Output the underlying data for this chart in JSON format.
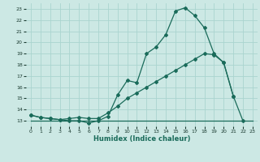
{
  "title": "",
  "xlabel": "Humidex (Indice chaleur)",
  "ylabel": "",
  "bg_color": "#cce8e4",
  "grid_color": "#aad4cf",
  "line_color": "#1a6b5a",
  "xlim": [
    -0.5,
    23.5
  ],
  "ylim": [
    12.5,
    23.5
  ],
  "xticks": [
    0,
    1,
    2,
    3,
    4,
    5,
    6,
    7,
    8,
    9,
    10,
    11,
    12,
    13,
    14,
    15,
    16,
    17,
    18,
    19,
    20,
    21,
    22,
    23
  ],
  "yticks": [
    13,
    14,
    15,
    16,
    17,
    18,
    19,
    20,
    21,
    22,
    23
  ],
  "line1_x": [
    0,
    1,
    2,
    3,
    4,
    5,
    6,
    7,
    8,
    9,
    10,
    11,
    12,
    13,
    14,
    15,
    16,
    17,
    18,
    19,
    20,
    21,
    22,
    23
  ],
  "line1_y": [
    13.5,
    13.3,
    13.2,
    13.1,
    13.0,
    13.0,
    12.8,
    13.0,
    13.4,
    15.3,
    16.6,
    16.4,
    19.0,
    19.6,
    20.7,
    22.8,
    23.1,
    22.4,
    21.3,
    19.0,
    18.2,
    15.2,
    null,
    null
  ],
  "line2_x": [
    0,
    1,
    2,
    3,
    4,
    5,
    6,
    7,
    8,
    9,
    10,
    11,
    12,
    13,
    14,
    15,
    16,
    17,
    18,
    19,
    20,
    21,
    22,
    23
  ],
  "line2_y": [
    13.5,
    13.3,
    13.2,
    13.1,
    13.2,
    13.3,
    13.2,
    13.2,
    13.7,
    14.3,
    15.0,
    15.5,
    16.0,
    16.5,
    17.0,
    17.5,
    18.0,
    18.5,
    19.0,
    18.9,
    18.2,
    15.2,
    13.0,
    null
  ],
  "line3_x": [
    0,
    23
  ],
  "line3_y": [
    13.0,
    13.0
  ],
  "markers1_x": [
    0,
    1,
    2,
    3,
    4,
    5,
    6,
    7,
    8,
    9,
    10,
    11,
    12,
    13,
    14,
    15,
    16,
    17,
    18,
    19,
    20,
    21
  ],
  "markers1_y": [
    13.5,
    13.3,
    13.2,
    13.1,
    13.0,
    13.0,
    12.8,
    13.0,
    13.4,
    15.3,
    16.6,
    16.4,
    19.0,
    19.6,
    20.7,
    22.8,
    23.1,
    22.4,
    21.3,
    19.0,
    18.2,
    15.2
  ],
  "markers2_x": [
    0,
    1,
    2,
    3,
    4,
    5,
    6,
    7,
    8,
    9,
    10,
    11,
    12,
    13,
    14,
    15,
    16,
    17,
    18,
    19,
    20,
    21,
    22
  ],
  "markers2_y": [
    13.5,
    13.3,
    13.2,
    13.1,
    13.2,
    13.3,
    13.2,
    13.2,
    13.7,
    14.3,
    15.0,
    15.5,
    16.0,
    16.5,
    17.0,
    17.5,
    18.0,
    18.5,
    19.0,
    18.9,
    18.2,
    15.2,
    13.0
  ]
}
